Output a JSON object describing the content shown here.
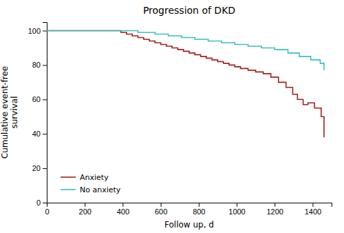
{
  "chart_data": {
    "type": "step",
    "title": "Progression of DKD",
    "xlabel": "Follow up, d",
    "ylabel": "Cumulative event-free\nsurvival",
    "xlim": [
      0,
      1500
    ],
    "ylim": [
      0,
      105
    ],
    "xticks": [
      0,
      200,
      400,
      600,
      800,
      1000,
      1200,
      1400
    ],
    "yticks": [
      0,
      20,
      40,
      60,
      80,
      100
    ],
    "grid": false,
    "legend": "lower left",
    "series": [
      {
        "name": "Anxiety",
        "color": "#A0201A",
        "x": [
          0,
          370,
          390,
          420,
          450,
          480,
          510,
          540,
          570,
          600,
          630,
          660,
          690,
          720,
          750,
          780,
          810,
          840,
          870,
          900,
          930,
          960,
          990,
          1020,
          1060,
          1100,
          1140,
          1180,
          1220,
          1260,
          1295,
          1320,
          1350,
          1375,
          1410,
          1445,
          1460
        ],
        "values": [
          100,
          100,
          99,
          98,
          97,
          96,
          95,
          94,
          93,
          92,
          91,
          90,
          89,
          88,
          87,
          86,
          85,
          84,
          83,
          82,
          81,
          80,
          79,
          78,
          77,
          76,
          75,
          73,
          70,
          67,
          63,
          60,
          57,
          58,
          55,
          50,
          38
        ]
      },
      {
        "name": "No anxiety",
        "color": "#3BBFBF",
        "x": [
          0,
          400,
          480,
          570,
          640,
          710,
          780,
          850,
          920,
          990,
          1060,
          1130,
          1200,
          1270,
          1330,
          1390,
          1440,
          1460
        ],
        "values": [
          100,
          100,
          99,
          98,
          97,
          96,
          95,
          94,
          93,
          92,
          91,
          90,
          89,
          87,
          85,
          83,
          81,
          77
        ]
      }
    ]
  }
}
